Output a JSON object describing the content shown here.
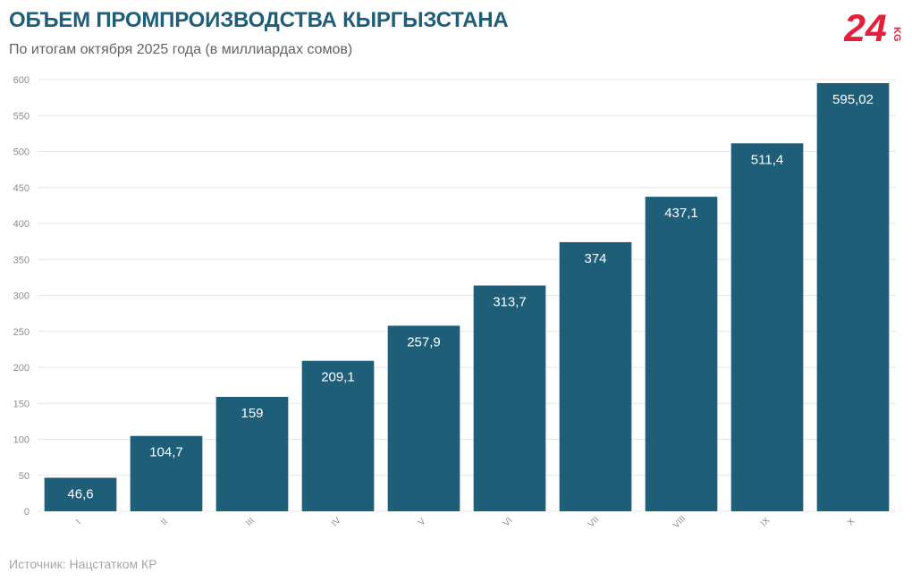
{
  "header": {
    "title": "ОБЪЕМ ПРОМПРОИЗВОДСТВА КЫРГЫЗСТАНА",
    "subtitle": "По итогам октября 2025 года (в миллиардах сомов)"
  },
  "logo": {
    "text": "24",
    "suffix": "KG",
    "color": "#e31f3c"
  },
  "footer": {
    "source": "Источник: Нацстатком КР"
  },
  "colors": {
    "bar": "#1f5e79",
    "grid": "#e7e7e7",
    "axis_text": "#8c8c8c",
    "label_text": "#ffffff"
  },
  "chart_data": {
    "type": "bar",
    "title": "ОБЪЕМ ПРОМПРОИЗВОДСТВА КЫРГЫЗСТАНА",
    "subtitle": "По итогам октября 2025 года (в миллиардах сомов)",
    "xlabel": "",
    "ylabel": "",
    "ylim": [
      0,
      600
    ],
    "yticks": [
      "0",
      "50",
      "100",
      "150",
      "200",
      "250",
      "300",
      "350",
      "400",
      "450",
      "500",
      "550",
      "600"
    ],
    "grid": true,
    "categories": [
      "I",
      "II",
      "III",
      "IV",
      "V",
      "VI",
      "VII",
      "VIII",
      "IX",
      "X"
    ],
    "values": [
      46.6,
      104.7,
      159,
      209.1,
      257.9,
      313.7,
      374,
      437.1,
      511.4,
      595.02
    ],
    "labels": [
      "46,6",
      "104,7",
      "159",
      "209,1",
      "257,9",
      "313,7",
      "374",
      "437,1",
      "511,4",
      "595,02"
    ]
  }
}
